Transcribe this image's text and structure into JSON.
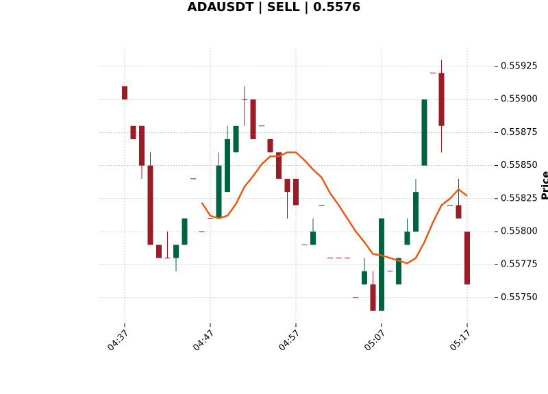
{
  "chart_data": {
    "type": "candlestick",
    "title": "ADAUSDT | SELL | 0.5576",
    "ylabel": "Price",
    "categories": [
      "04:37",
      null,
      null,
      null,
      null,
      null,
      null,
      null,
      null,
      null,
      "04:47",
      null,
      null,
      null,
      null,
      null,
      null,
      null,
      null,
      null,
      "04:57",
      null,
      null,
      null,
      null,
      null,
      null,
      null,
      null,
      null,
      "05:07",
      null,
      null,
      null,
      null,
      null,
      null,
      null,
      null,
      null,
      "05:17"
    ],
    "open": [
      0.5591,
      0.5588,
      0.5588,
      0.5585,
      0.5579,
      0.5578,
      0.5578,
      0.5579,
      0.5584,
      0.558,
      0.5581,
      0.5581,
      0.5583,
      0.5586,
      0.559,
      0.559,
      0.5588,
      0.5587,
      0.5586,
      0.5584,
      0.5584,
      0.5579,
      0.5579,
      0.5582,
      0.5578,
      0.5578,
      0.5578,
      0.5575,
      0.5576,
      0.5576,
      0.5574,
      0.5577,
      0.5576,
      0.5579,
      0.558,
      0.5585,
      0.5592,
      0.5592,
      0.5582,
      0.5582,
      0.558
    ],
    "high": [
      0.5591,
      0.5588,
      0.5588,
      0.5586,
      0.5579,
      0.558,
      0.5579,
      0.5581,
      0.5584,
      0.558,
      0.5581,
      0.5586,
      0.5588,
      0.5588,
      0.5591,
      0.559,
      0.5588,
      0.5587,
      0.5586,
      0.5584,
      0.5584,
      0.5579,
      0.5581,
      0.5582,
      0.5578,
      0.5578,
      0.5578,
      0.5575,
      0.5578,
      0.5577,
      0.5581,
      0.5577,
      0.5578,
      0.5581,
      0.5584,
      0.559,
      0.5592,
      0.5593,
      0.5582,
      0.5584,
      0.558
    ],
    "low": [
      0.559,
      0.5587,
      0.5584,
      0.5579,
      0.5578,
      0.5578,
      0.5577,
      0.5579,
      0.5584,
      0.558,
      0.5581,
      0.5581,
      0.5583,
      0.5586,
      0.5588,
      0.5587,
      0.5588,
      0.5586,
      0.5584,
      0.5581,
      0.5582,
      0.5579,
      0.5579,
      0.5582,
      0.5578,
      0.5578,
      0.5578,
      0.5575,
      0.5576,
      0.5574,
      0.5574,
      0.5577,
      0.5576,
      0.5579,
      0.558,
      0.5585,
      0.5592,
      0.5586,
      0.5582,
      0.5581,
      0.5576
    ],
    "close": [
      0.559,
      0.5587,
      0.5585,
      0.5579,
      0.5578,
      0.5578,
      0.5579,
      0.5581,
      0.5584,
      0.558,
      0.5581,
      0.5585,
      0.5587,
      0.5588,
      0.559,
      0.5587,
      0.5588,
      0.5586,
      0.5584,
      0.5583,
      0.5582,
      0.5579,
      0.558,
      0.5582,
      0.5578,
      0.5578,
      0.5578,
      0.5575,
      0.5577,
      0.5574,
      0.5581,
      0.5577,
      0.5578,
      0.558,
      0.5583,
      0.559,
      0.5592,
      0.5588,
      0.5582,
      0.5581,
      0.5576
    ],
    "up_color": "#006340",
    "down_color": "#9a1c24",
    "series": [
      {
        "color": "#eb5a14",
        "values": [
          null,
          null,
          null,
          null,
          null,
          null,
          null,
          null,
          null,
          0.55822,
          0.55812,
          0.5581,
          0.55812,
          0.55821,
          0.55834,
          0.55842,
          0.55851,
          0.55857,
          0.55857,
          0.5586,
          0.5586,
          0.55854,
          0.55847,
          0.55841,
          0.55829,
          0.5582,
          0.5581,
          0.558,
          0.55792,
          0.55783,
          0.55782,
          0.5578,
          0.55778,
          0.55776,
          0.5578,
          0.55792,
          0.55807,
          0.5582,
          0.55825,
          0.55832,
          0.55827
        ]
      }
    ],
    "ylim": [
      0.557305,
      0.55939
    ],
    "yticks": [
      {
        "value": 0.5575,
        "label": "0.55750"
      },
      0.55775,
      {
        "value": 0.558,
        "label": "0.55800"
      },
      0.55825,
      {
        "value": 0.5585,
        "label": "0.55850"
      },
      0.55875,
      {
        "value": 0.559,
        "label": "0.55900"
      },
      0.55925
    ],
    "grid": true
  }
}
